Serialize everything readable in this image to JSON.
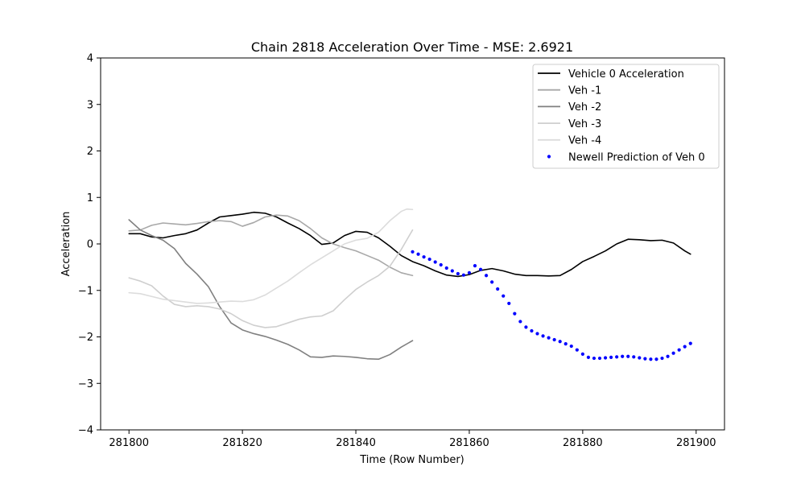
{
  "chart_data": {
    "type": "line",
    "title": "Chain 2818 Acceleration Over Time - MSE: 2.6921",
    "xlabel": "Time (Row Number)",
    "ylabel": "Acceleration",
    "xlim": [
      281795,
      281905
    ],
    "ylim": [
      -4,
      4
    ],
    "xticks": [
      281800,
      281820,
      281840,
      281860,
      281880,
      281900
    ],
    "yticks": [
      -4,
      -3,
      -2,
      -1,
      0,
      1,
      2,
      3,
      4
    ],
    "xtick_labels": [
      "281800",
      "281820",
      "281840",
      "281860",
      "281880",
      "281900"
    ],
    "ytick_labels": [
      "−4",
      "−3",
      "−2",
      "−1",
      "0",
      "1",
      "2",
      "3",
      "4"
    ],
    "grid": false,
    "legend_position": "top-right",
    "series": [
      {
        "name": "Vehicle 0 Acceleration",
        "color": "#000000",
        "style": "line",
        "x": [
          281800,
          281802,
          281804,
          281806,
          281808,
          281810,
          281812,
          281814,
          281816,
          281818,
          281820,
          281822,
          281824,
          281826,
          281828,
          281830,
          281832,
          281834,
          281836,
          281838,
          281840,
          281842,
          281844,
          281846,
          281848,
          281850,
          281852,
          281854,
          281856,
          281858,
          281860,
          281862,
          281864,
          281866,
          281868,
          281870,
          281872,
          281874,
          281876,
          281878,
          281880,
          281882,
          281884,
          281886,
          281888,
          281890,
          281892,
          281894,
          281896,
          281898,
          281899
        ],
        "y": [
          0.22,
          0.22,
          0.15,
          0.13,
          0.18,
          0.22,
          0.3,
          0.45,
          0.58,
          0.61,
          0.64,
          0.68,
          0.66,
          0.58,
          0.45,
          0.33,
          0.18,
          -0.01,
          0.02,
          0.18,
          0.27,
          0.25,
          0.13,
          -0.05,
          -0.25,
          -0.38,
          -0.47,
          -0.58,
          -0.67,
          -0.7,
          -0.66,
          -0.57,
          -0.53,
          -0.58,
          -0.65,
          -0.68,
          -0.68,
          -0.69,
          -0.68,
          -0.55,
          -0.38,
          -0.27,
          -0.15,
          0.0,
          0.1,
          0.09,
          0.07,
          0.08,
          0.02,
          -0.15,
          -0.22
        ]
      },
      {
        "name": "Veh -1",
        "color": "#a8a8a8",
        "style": "line",
        "x": [
          281800,
          281802,
          281804,
          281806,
          281808,
          281810,
          281812,
          281814,
          281816,
          281818,
          281820,
          281822,
          281824,
          281826,
          281828,
          281830,
          281832,
          281834,
          281836,
          281838,
          281840,
          281842,
          281844,
          281846,
          281848,
          281850
        ],
        "y": [
          0.28,
          0.3,
          0.4,
          0.45,
          0.43,
          0.41,
          0.44,
          0.48,
          0.5,
          0.48,
          0.38,
          0.46,
          0.58,
          0.62,
          0.6,
          0.5,
          0.33,
          0.13,
          0.0,
          -0.08,
          -0.15,
          -0.25,
          -0.35,
          -0.5,
          -0.62,
          -0.68
        ]
      },
      {
        "name": "Veh -2",
        "color": "#808080",
        "style": "line",
        "x": [
          281800,
          281802,
          281804,
          281806,
          281808,
          281810,
          281812,
          281814,
          281816,
          281818,
          281820,
          281822,
          281824,
          281826,
          281828,
          281830,
          281832,
          281834,
          281836,
          281838,
          281840,
          281842,
          281844,
          281846,
          281848,
          281850
        ],
        "y": [
          0.52,
          0.3,
          0.18,
          0.08,
          -0.1,
          -0.42,
          -0.65,
          -0.92,
          -1.35,
          -1.7,
          -1.85,
          -1.93,
          -1.99,
          -2.07,
          -2.16,
          -2.28,
          -2.43,
          -2.44,
          -2.41,
          -2.42,
          -2.44,
          -2.47,
          -2.48,
          -2.38,
          -2.22,
          -2.08
        ]
      },
      {
        "name": "Veh -3",
        "color": "#cfcfcf",
        "style": "line",
        "x": [
          281800,
          281802,
          281804,
          281806,
          281808,
          281810,
          281812,
          281814,
          281816,
          281818,
          281820,
          281822,
          281824,
          281826,
          281828,
          281830,
          281832,
          281834,
          281836,
          281838,
          281840,
          281842,
          281844,
          281846,
          281848,
          281850
        ],
        "y": [
          -0.73,
          -0.8,
          -0.9,
          -1.12,
          -1.3,
          -1.35,
          -1.33,
          -1.35,
          -1.4,
          -1.5,
          -1.65,
          -1.75,
          -1.8,
          -1.78,
          -1.7,
          -1.62,
          -1.57,
          -1.55,
          -1.44,
          -1.2,
          -0.98,
          -0.82,
          -0.68,
          -0.48,
          -0.12,
          0.3
        ]
      },
      {
        "name": "Veh -4",
        "color": "#dcdcdc",
        "style": "line",
        "x": [
          281800,
          281802,
          281804,
          281806,
          281808,
          281810,
          281812,
          281814,
          281816,
          281818,
          281820,
          281822,
          281824,
          281826,
          281828,
          281830,
          281832,
          281834,
          281836,
          281838,
          281840,
          281842,
          281844,
          281846,
          281848,
          281849,
          281850
        ],
        "y": [
          -1.05,
          -1.07,
          -1.13,
          -1.19,
          -1.22,
          -1.25,
          -1.28,
          -1.27,
          -1.25,
          -1.23,
          -1.24,
          -1.2,
          -1.1,
          -0.95,
          -0.8,
          -0.62,
          -0.45,
          -0.3,
          -0.15,
          0.0,
          0.08,
          0.12,
          0.25,
          0.5,
          0.7,
          0.75,
          0.74
        ]
      },
      {
        "name": "Newell Prediction of Veh 0",
        "color": "#0000ff",
        "style": "dots",
        "x": [
          281850,
          281851,
          281852,
          281853,
          281854,
          281855,
          281856,
          281857,
          281858,
          281859,
          281860,
          281861,
          281862,
          281863,
          281864,
          281865,
          281866,
          281867,
          281868,
          281869,
          281870,
          281871,
          281872,
          281873,
          281874,
          281875,
          281876,
          281877,
          281878,
          281879,
          281880,
          281881,
          281882,
          281883,
          281884,
          281885,
          281886,
          281887,
          281888,
          281889,
          281890,
          281891,
          281892,
          281893,
          281894,
          281895,
          281896,
          281897,
          281898,
          281899
        ],
        "y": [
          -0.17,
          -0.22,
          -0.28,
          -0.33,
          -0.39,
          -0.45,
          -0.52,
          -0.58,
          -0.64,
          -0.67,
          -0.62,
          -0.47,
          -0.55,
          -0.68,
          -0.82,
          -0.97,
          -1.12,
          -1.28,
          -1.5,
          -1.67,
          -1.79,
          -1.87,
          -1.93,
          -1.98,
          -2.02,
          -2.06,
          -2.1,
          -2.15,
          -2.2,
          -2.28,
          -2.37,
          -2.44,
          -2.46,
          -2.46,
          -2.45,
          -2.44,
          -2.43,
          -2.42,
          -2.42,
          -2.43,
          -2.45,
          -2.47,
          -2.48,
          -2.48,
          -2.46,
          -2.42,
          -2.35,
          -2.28,
          -2.21,
          -2.14
        ]
      }
    ]
  }
}
